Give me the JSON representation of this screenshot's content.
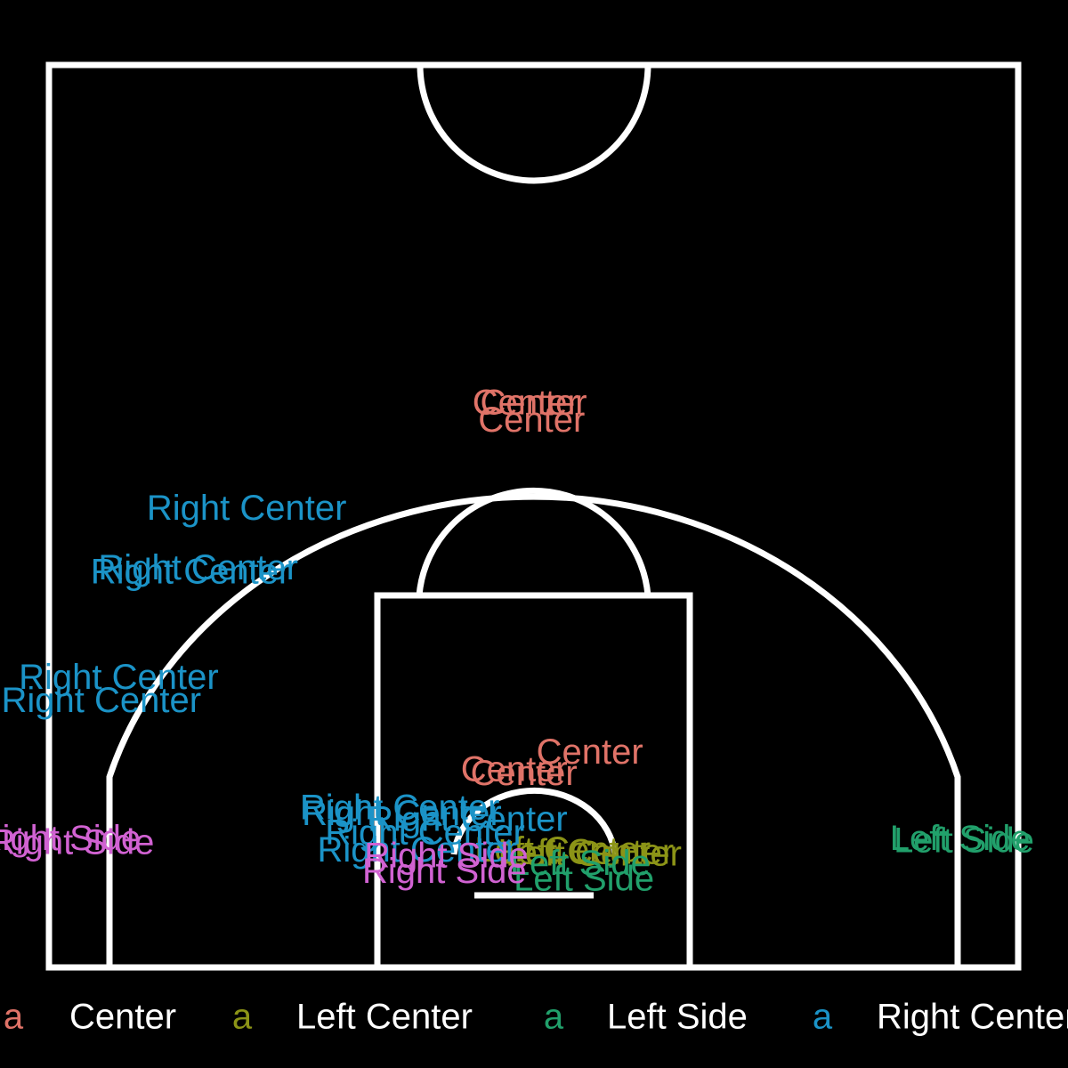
{
  "chart_data": {
    "type": "scatter",
    "title": "",
    "xlabel": "",
    "ylabel": "",
    "xlim": [
      -25,
      25
    ],
    "ylim": [
      0,
      47
    ],
    "grid": false,
    "background": "#000000",
    "court_line_color": "#ffffff",
    "legend_position": "bottom",
    "legend_key_glyph": "a",
    "legend_entries": [
      {
        "label": "Center",
        "color": "#E07368"
      },
      {
        "label": "Left Center",
        "color": "#8C9417"
      },
      {
        "label": "Left Side",
        "color": "#21A06B"
      },
      {
        "label": "Right Center",
        "color": "#1B93C7"
      },
      {
        "label": "Right Side",
        "color": "#D162D2"
      }
    ],
    "series": [
      {
        "name": "Center",
        "color": "#E07368",
        "x": [
          -0.4,
          0,
          -0.1,
          -0.5,
          -1.0,
          2.9
        ],
        "y": [
          29.3,
          29.3,
          28.4,
          10.0,
          10.2,
          11.1
        ]
      },
      {
        "name": "Left Center",
        "color": "#8C9417",
        "x": [
          1.5,
          2.7,
          3.1
        ],
        "y": [
          6.0,
          5.9,
          5.8
        ]
      },
      {
        "name": "Left Side",
        "color": "#21A06B",
        "x": [
          22.0,
          22.2,
          2.6,
          2.4
        ],
        "y": [
          6.6,
          6.5,
          4.5,
          5.3
        ]
      },
      {
        "name": "Right Center",
        "color": "#1B93C7",
        "x": [
          -14.8,
          -17.3,
          -17.7,
          -21.4,
          -22.3,
          -6.9,
          -6.8,
          -3.4,
          -6.0,
          -5.6
        ],
        "y": [
          23.8,
          20.7,
          20.5,
          15.0,
          13.8,
          8.2,
          7.9,
          7.6,
          6.0,
          6.9
        ]
      },
      {
        "name": "Right Side",
        "color": "#D162D2",
        "x": [
          -24.5,
          -23.8,
          -4.5,
          -4.6
        ],
        "y": [
          6.6,
          6.4,
          5.7,
          4.9
        ]
      }
    ]
  }
}
